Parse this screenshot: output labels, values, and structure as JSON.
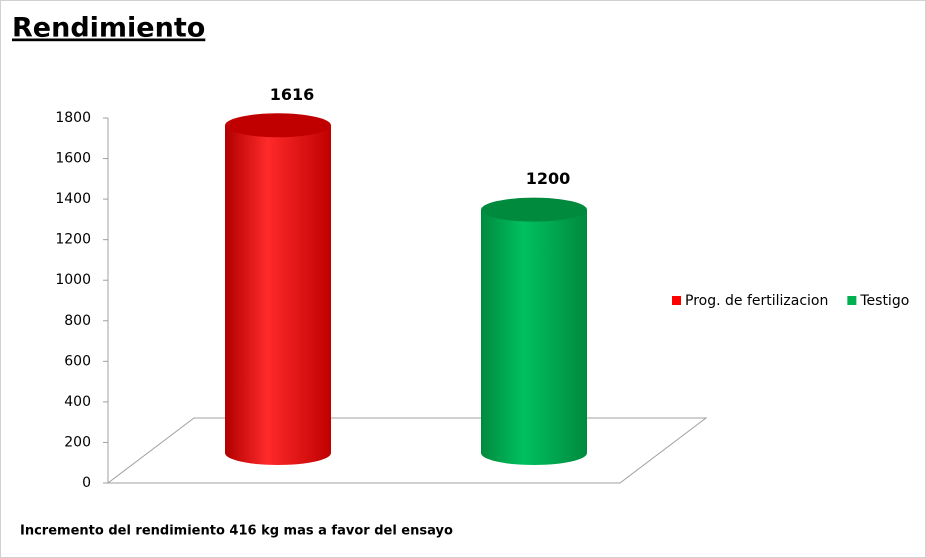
{
  "chart_data": {
    "type": "bar",
    "title": "Rendimiento",
    "categories": [
      null
    ],
    "series": [
      {
        "name": "Prog. de fertilizacion",
        "color": "#ff0000",
        "values": [
          1616
        ]
      },
      {
        "name": "Testigo",
        "color": "#00b050",
        "values": [
          1200
        ]
      }
    ],
    "ylim": [
      0,
      1800
    ],
    "yticks": [
      0,
      200,
      400,
      600,
      800,
      1000,
      1200,
      1400,
      1600,
      1800
    ],
    "legend": "right",
    "annotations": [
      "Incremento del rendimiento 416 kg mas a favor del ensayo"
    ]
  }
}
